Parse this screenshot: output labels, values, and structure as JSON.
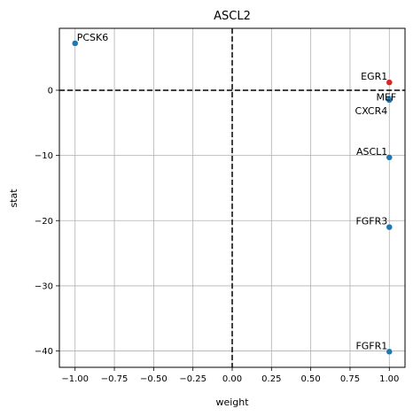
{
  "chart_data": {
    "type": "scatter",
    "title": "ASCL2",
    "xlabel": "weight",
    "ylabel": "stat",
    "xlim": [
      -1.1,
      1.1
    ],
    "ylim": [
      -42.5,
      9.5
    ],
    "xticks": [
      -1.0,
      -0.75,
      -0.5,
      -0.25,
      0.0,
      0.25,
      0.5,
      0.75,
      1.0
    ],
    "xtick_labels": [
      "−1.00",
      "−0.75",
      "−0.50",
      "−0.25",
      "0.00",
      "0.25",
      "0.50",
      "0.75",
      "1.00"
    ],
    "yticks": [
      0,
      -10,
      -20,
      -30,
      -40
    ],
    "ytick_labels": [
      "0",
      "−10",
      "−20",
      "−30",
      "−40"
    ],
    "grid": true,
    "reference_lines": {
      "x": 0,
      "y": 0,
      "style": "dashed",
      "color": "#000000"
    },
    "points": [
      {
        "label": "PCSK6",
        "x": -1.0,
        "y": 7.2,
        "color": "#1f77b4",
        "label_anchor": "right"
      },
      {
        "label": "EGR1",
        "x": 1.0,
        "y": 1.2,
        "color": "#d62728",
        "label_anchor": "left"
      },
      {
        "label": "MEF",
        "x": 1.0,
        "y": -1.3,
        "color": "#1f77b4",
        "label_anchor": "above-left"
      },
      {
        "label": "CXCR4",
        "x": 1.0,
        "y": -1.5,
        "color": "#1f77b4",
        "label_anchor": "below-left"
      },
      {
        "label": "ASCL1",
        "x": 1.0,
        "y": -10.3,
        "color": "#1f77b4",
        "label_anchor": "left"
      },
      {
        "label": "FGFR3",
        "x": 1.0,
        "y": -21.0,
        "color": "#1f77b4",
        "label_anchor": "left"
      },
      {
        "label": "FGFR1",
        "x": 1.0,
        "y": -40.1,
        "color": "#1f77b4",
        "label_anchor": "left"
      }
    ]
  }
}
